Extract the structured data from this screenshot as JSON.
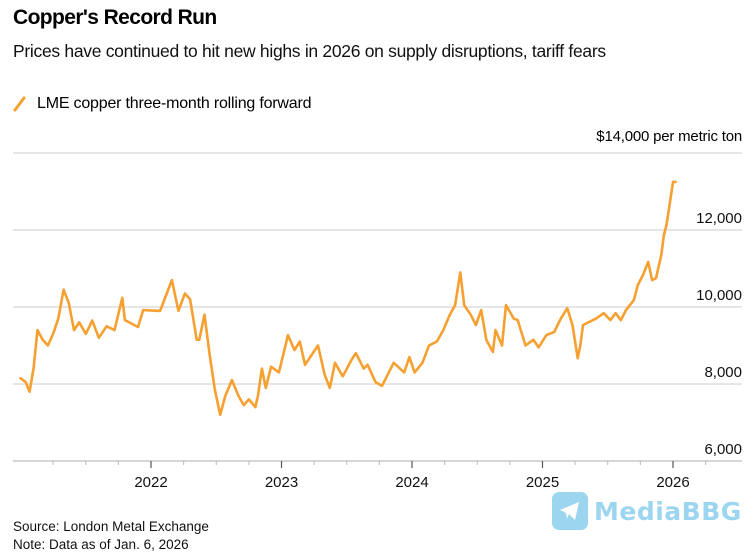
{
  "header": {
    "title": "Copper's Record Run",
    "subtitle": "Prices have continued to hit new highs in 2026 on supply disruptions, tariff fears"
  },
  "footer": {
    "source": "Source: London Metal Exchange",
    "note": "Note: Data as of Jan. 6, 2026"
  },
  "watermark": {
    "text": "MediaBBG",
    "icon": "telegram-plane-icon",
    "color": "#7cc8ec"
  },
  "chart_data": {
    "type": "line",
    "title": "Copper's Record Run",
    "subtitle": "Prices have continued to hit new highs in 2026 on supply disruptions, tariff fears",
    "xlabel": "",
    "ylabel": "$ per metric ton",
    "unit_label": "$14,000 per metric ton",
    "ylim": [
      6000,
      14000
    ],
    "xlim": [
      2021.0,
      2026.4
    ],
    "grid": true,
    "legend_position": "top-left",
    "y_ticks": [
      {
        "value": 6000,
        "label": "6,000"
      },
      {
        "value": 8000,
        "label": "8,000"
      },
      {
        "value": 10000,
        "label": "10,000"
      },
      {
        "value": 12000,
        "label": "12,000"
      },
      {
        "value": 14000,
        "label": "$14,000 per metric ton"
      }
    ],
    "x_ticks": [
      {
        "value": 2022,
        "label": "2022"
      },
      {
        "value": 2023,
        "label": "2023"
      },
      {
        "value": 2024,
        "label": "2024"
      },
      {
        "value": 2025,
        "label": "2025"
      },
      {
        "value": 2026,
        "label": "2026"
      }
    ],
    "series": [
      {
        "name": "LME copper three-month rolling forward",
        "color": "#f5a030",
        "x": [
          2021.0,
          2021.04,
          2021.07,
          2021.1,
          2021.13,
          2021.17,
          2021.21,
          2021.25,
          2021.29,
          2021.33,
          2021.37,
          2021.41,
          2021.45,
          2021.5,
          2021.55,
          2021.6,
          2021.66,
          2021.72,
          2021.78,
          2021.8,
          2021.9,
          2021.94,
          2022.07,
          2022.16,
          2022.21,
          2022.26,
          2022.3,
          2022.35,
          2022.37,
          2022.41,
          2022.45,
          2022.49,
          2022.53,
          2022.57,
          2022.62,
          2022.67,
          2022.71,
          2022.75,
          2022.8,
          2022.82,
          2022.85,
          2022.88,
          2022.92,
          2022.98,
          2023.05,
          2023.1,
          2023.14,
          2023.18,
          2023.28,
          2023.33,
          2023.37,
          2023.41,
          2023.47,
          2023.54,
          2023.57,
          2023.63,
          2023.66,
          2023.72,
          2023.77,
          2023.8,
          2023.86,
          2023.94,
          2023.98,
          2024.02,
          2024.08,
          2024.13,
          2024.19,
          2024.24,
          2024.29,
          2024.33,
          2024.37,
          2024.4,
          2024.45,
          2024.49,
          2024.53,
          2024.57,
          2024.62,
          2024.64,
          2024.69,
          2024.72,
          2024.78,
          2024.81,
          2024.87,
          2024.93,
          2024.97,
          2025.03,
          2025.09,
          2025.14,
          2025.19,
          2025.23,
          2025.27,
          2025.29,
          2025.31,
          2025.35,
          2025.41,
          2025.47,
          2025.52,
          2025.56,
          2025.6,
          2025.64,
          2025.7,
          2025.73,
          2025.77,
          2025.81,
          2025.84,
          2025.87,
          2025.91,
          2025.93,
          2025.95,
          2025.97,
          2026.0,
          2026.02
        ],
        "values": [
          8150,
          8050,
          7800,
          8400,
          9400,
          9150,
          9000,
          9300,
          9700,
          10450,
          10100,
          9400,
          9600,
          9300,
          9650,
          9200,
          9500,
          9400,
          10240,
          9660,
          9480,
          9920,
          9900,
          10700,
          9900,
          10350,
          10200,
          9150,
          9150,
          9800,
          8750,
          7850,
          7200,
          7700,
          8100,
          7700,
          7450,
          7600,
          7400,
          7700,
          8400,
          7900,
          8450,
          8300,
          9270,
          8880,
          9100,
          8500,
          9000,
          8250,
          7900,
          8550,
          8200,
          8650,
          8800,
          8400,
          8500,
          8050,
          7950,
          8150,
          8550,
          8300,
          8700,
          8300,
          8550,
          9000,
          9100,
          9400,
          9800,
          10050,
          10900,
          10050,
          9800,
          9530,
          9920,
          9140,
          8830,
          9400,
          9000,
          10050,
          9700,
          9660,
          9000,
          9150,
          8950,
          9270,
          9350,
          9700,
          9970,
          9530,
          8670,
          9000,
          9530,
          9600,
          9700,
          9840,
          9660,
          9840,
          9660,
          9920,
          10180,
          10570,
          10830,
          11170,
          10700,
          10750,
          11350,
          11870,
          12130,
          12570,
          13250,
          13250
        ]
      }
    ]
  }
}
